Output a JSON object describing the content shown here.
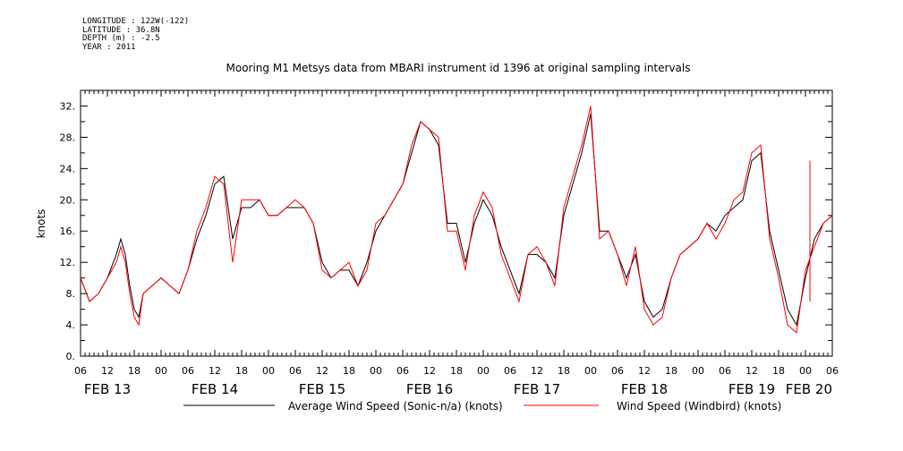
{
  "meta": {
    "longitude": "LONGITUDE : 122W(-122)",
    "latitude": "LATITUDE : 36.8N",
    "depth": "DEPTH (m) : -2.5",
    "year": "YEAR : 2011"
  },
  "chart_data": {
    "type": "line",
    "title": "Mooring M1 Metsys data from MBARI instrument id 1396 at original sampling intervals",
    "ylabel": "knots",
    "xlabel": "",
    "ylim": [
      0,
      34
    ],
    "xlim_hours": [
      0,
      168
    ],
    "x_unit": "hours since 2011-02-13 06:00",
    "yticks": [
      "0.",
      "4.",
      "8.",
      "12.",
      "16.",
      "20.",
      "24.",
      "28.",
      "32."
    ],
    "ytick_values": [
      0,
      4,
      8,
      12,
      16,
      20,
      24,
      28,
      32
    ],
    "hour_ticks": [
      "06",
      "12",
      "18",
      "00",
      "06",
      "12",
      "18",
      "00",
      "06",
      "12",
      "18",
      "00",
      "06",
      "12",
      "18",
      "00",
      "06",
      "12",
      "18",
      "00",
      "06",
      "12",
      "18",
      "00",
      "06",
      "12",
      "18",
      "00",
      "06"
    ],
    "day_labels": [
      {
        "label": "FEB 13",
        "hour": 6
      },
      {
        "label": "FEB 14",
        "hour": 30
      },
      {
        "label": "FEB 15",
        "hour": 54
      },
      {
        "label": "FEB 16",
        "hour": 78
      },
      {
        "label": "FEB 17",
        "hour": 102
      },
      {
        "label": "FEB 18",
        "hour": 126
      },
      {
        "label": "FEB 19",
        "hour": 150
      },
      {
        "label": "FEB 20",
        "hour": 168
      }
    ],
    "grid": false,
    "legend_position": "bottom",
    "series": [
      {
        "name": "Average Wind Speed (Sonic-n/a) (knots)",
        "color": "#000000",
        "x": [
          0,
          2,
          4,
          6,
          8,
          9,
          10,
          11,
          12,
          13,
          14,
          16,
          18,
          20,
          22,
          24,
          26,
          28,
          30,
          32,
          34,
          36,
          38,
          40,
          42,
          44,
          46,
          48,
          50,
          52,
          54,
          56,
          58,
          60,
          62,
          64,
          66,
          68,
          70,
          72,
          74,
          76,
          78,
          80,
          82,
          84,
          86,
          88,
          90,
          92,
          94,
          96,
          98,
          100,
          102,
          104,
          106,
          108,
          110,
          112,
          114,
          116,
          118,
          120,
          122,
          124,
          126,
          128,
          130,
          132,
          134,
          136,
          138,
          140,
          142,
          144,
          146,
          148,
          150,
          152,
          154,
          156,
          158,
          160,
          162,
          164,
          166,
          168
        ],
        "y": [
          10,
          7,
          8,
          10,
          13,
          15,
          13,
          9,
          6,
          5,
          8,
          9,
          10,
          9,
          8,
          11,
          15,
          18,
          22,
          23,
          15,
          19,
          19,
          20,
          18,
          18,
          19,
          19,
          19,
          17,
          12,
          10,
          11,
          11,
          9,
          12,
          16,
          18,
          20,
          22,
          26,
          30,
          29,
          27,
          17,
          17,
          12,
          17,
          20,
          18,
          14,
          11,
          8,
          13,
          13,
          12,
          10,
          18,
          22,
          26,
          31,
          16,
          16,
          13,
          10,
          13,
          7,
          5,
          6,
          10,
          13,
          14,
          15,
          17,
          16,
          18,
          19,
          20,
          25,
          26,
          16,
          11,
          6,
          4,
          10,
          15,
          17,
          18
        ]
      },
      {
        "name": "Wind Speed (Windbird) (knots)",
        "color": "#ff0000",
        "x": [
          0,
          2,
          4,
          6,
          8,
          9,
          10,
          11,
          12,
          13,
          14,
          16,
          18,
          20,
          22,
          24,
          26,
          28,
          30,
          32,
          34,
          36,
          38,
          40,
          42,
          44,
          46,
          48,
          50,
          52,
          54,
          56,
          58,
          60,
          62,
          64,
          66,
          68,
          70,
          72,
          74,
          76,
          78,
          80,
          82,
          84,
          86,
          88,
          90,
          92,
          94,
          96,
          98,
          100,
          102,
          104,
          106,
          108,
          110,
          112,
          114,
          116,
          118,
          120,
          122,
          124,
          126,
          128,
          130,
          132,
          134,
          136,
          138,
          140,
          142,
          144,
          146,
          148,
          150,
          152,
          154,
          156,
          158,
          160,
          162,
          164,
          166,
          168
        ],
        "y": [
          10,
          7,
          8,
          10,
          12,
          14,
          12,
          8,
          5,
          4,
          8,
          9,
          10,
          9,
          8,
          11,
          16,
          19,
          23,
          22,
          12,
          20,
          20,
          20,
          18,
          18,
          19,
          20,
          19,
          17,
          11,
          10,
          11,
          12,
          9,
          11,
          17,
          18,
          20,
          22,
          27,
          30,
          29,
          28,
          16,
          16,
          11,
          18,
          21,
          19,
          13,
          10,
          7,
          13,
          14,
          12,
          9,
          19,
          23,
          27,
          32,
          15,
          16,
          13,
          9,
          14,
          6,
          4,
          5,
          10,
          13,
          14,
          15,
          17,
          15,
          17,
          20,
          21,
          26,
          27,
          15,
          10,
          4,
          3,
          11,
          14,
          17,
          18
        ]
      }
    ],
    "annotations": [
      {
        "series": "Wind Speed (Windbird) (knots)",
        "x": 163,
        "y": 25
      }
    ]
  }
}
